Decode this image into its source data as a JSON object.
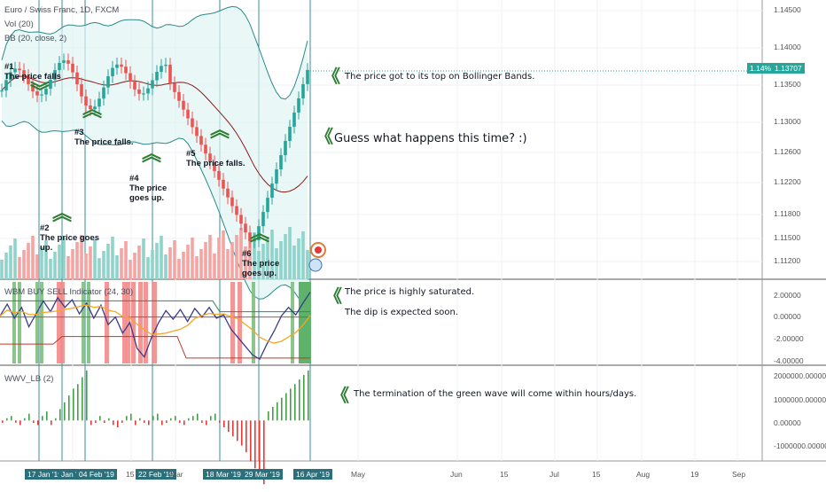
{
  "chart_data": [
    {
      "type": "candlestick",
      "title": "Euro / Swiss Franc, 1D, FXCM",
      "indicators": [
        "Vol (20)",
        "BB (20, close, 2)"
      ],
      "ylim": [
        1.109,
        1.147
      ],
      "yticks": [
        "1.14500",
        "1.14000",
        "1.13500",
        "1.13000",
        "1.12600",
        "1.12200",
        "1.11800",
        "1.11500",
        "1.11200"
      ],
      "last_price": "1.13707",
      "last_change": "1.14%",
      "annotations": [
        {
          "num": "#1",
          "text": "The price falls"
        },
        {
          "num": "#2",
          "text": "The price goes up."
        },
        {
          "num": "#3",
          "text": "The price falls."
        },
        {
          "num": "#4",
          "text": "The price goes up."
        },
        {
          "num": "#5",
          "text": "The price falls."
        },
        {
          "num": "#6",
          "text": "The price goes up."
        }
      ],
      "callouts": [
        "The price got to its top on Bollinger Bands.",
        "Guess what happens this time? :)"
      ]
    },
    {
      "type": "line",
      "title": "WBM BUY SELL Indicator (24, 30)",
      "ylim": [
        -4,
        3
      ],
      "yticks": [
        "2.00000",
        "0.00000",
        "-2.00000",
        "-4.00000"
      ],
      "callouts": [
        "The price is highly saturated.",
        "The dip is expected soon."
      ]
    },
    {
      "type": "bar",
      "title": "WWV_LB (2)",
      "ylim": [
        -1500000,
        2200000
      ],
      "yticks": [
        "2000000.00000",
        "1000000.00000",
        "0.00000",
        "-1000000.00000"
      ],
      "callouts": [
        "The termination of the green wave will come within hours/days."
      ]
    }
  ],
  "x_axis": {
    "labels": [
      "17 Jan '19",
      "Jan '19",
      "04 Feb '19",
      "15",
      "22 Feb '19",
      "Mar",
      "18 Mar '19",
      "29 Mar '19",
      "16 Apr '19",
      "May",
      "Jun",
      "15",
      "Jul",
      "15",
      "Aug",
      "19",
      "Sep"
    ],
    "highlighted": [
      "17 Jan '19",
      "Jan '19",
      "04 Feb '19",
      "22 Feb '19",
      "18 Mar '19",
      "29 Mar '19",
      "16 Apr '19"
    ]
  },
  "colors": {
    "up": "#26a69a",
    "down": "#ef5350",
    "bb_fill": "#e0f3f3",
    "bb_band": "#2b8a8a",
    "bb_basis": "#8b1a1a",
    "wave_line": "#3b3b8c",
    "signal_line": "#f5a623",
    "arrow_green": "#2e7d32"
  }
}
